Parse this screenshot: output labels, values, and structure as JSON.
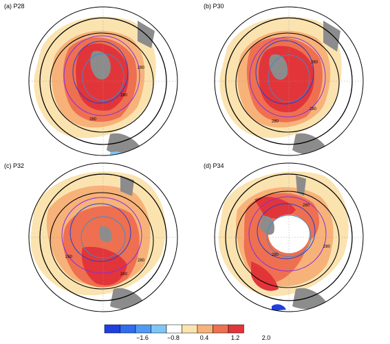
{
  "panels": [
    {
      "label": "(a)  P28",
      "contour_labels": [
        "280",
        "280",
        "280"
      ]
    },
    {
      "label": "(b)  P30",
      "contour_labels": [
        "280",
        "280",
        "280"
      ]
    },
    {
      "label": "(c)  P32",
      "contour_labels": [
        "280",
        "280",
        "280"
      ]
    },
    {
      "label": "(d)  P34",
      "contour_labels": [
        "280",
        "280",
        "280"
      ]
    }
  ],
  "colorbar": {
    "colors": [
      "#1f3fe0",
      "#2f6cf0",
      "#4f9af4",
      "#7fc6f7",
      "#ffffff",
      "#fbe3b0",
      "#f7b27a",
      "#ee7050",
      "#e2353a"
    ],
    "ticks": [
      "−1.6",
      "−0.8",
      "0.4",
      "1.2",
      "2.0"
    ]
  },
  "map_colors": {
    "land": "#8c8c8c",
    "pale": "#fbe3b0",
    "orange": "#f7b27a",
    "salmon": "#ee7050",
    "red": "#e2353a",
    "blue_shade": "#7fc6f7",
    "contour_black": "#000000",
    "contour_purple": "#8b2be2",
    "contour_blue": "#1b3fd6",
    "contour_cyan": "#2f8fd6"
  }
}
